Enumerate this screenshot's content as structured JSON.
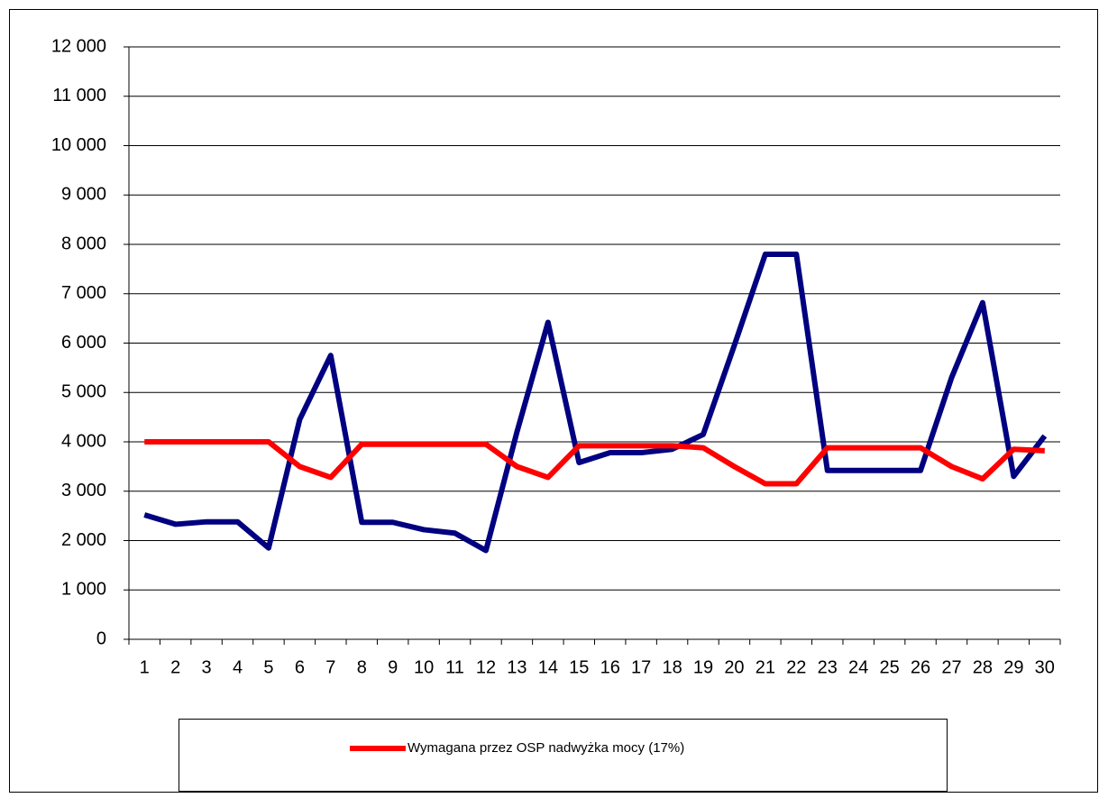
{
  "chart_data": {
    "type": "line",
    "categories": [
      "1",
      "2",
      "3",
      "4",
      "5",
      "6",
      "7",
      "8",
      "9",
      "10",
      "11",
      "12",
      "13",
      "14",
      "15",
      "16",
      "17",
      "18",
      "19",
      "20",
      "21",
      "22",
      "23",
      "24",
      "25",
      "26",
      "27",
      "28",
      "29",
      "30"
    ],
    "series": [
      {
        "name": "Wymagana przez OSP nadwyżka mocy (17%)",
        "color": "#ff0000",
        "values": [
          4000,
          4000,
          4000,
          4000,
          4000,
          3500,
          3280,
          3950,
          3950,
          3950,
          3950,
          3950,
          3500,
          3280,
          3920,
          3920,
          3920,
          3920,
          3880,
          3500,
          3150,
          3150,
          3880,
          3880,
          3880,
          3880,
          3500,
          3250,
          3850,
          3820
        ]
      },
      {
        "color": "#000080",
        "values": [
          2520,
          2330,
          2380,
          2380,
          1850,
          4450,
          5750,
          2370,
          2370,
          2220,
          2150,
          1800,
          4200,
          6420,
          3580,
          3780,
          3780,
          3850,
          4150,
          5950,
          7800,
          7800,
          3420,
          3420,
          3420,
          3420,
          5300,
          6820,
          3300,
          4120
        ]
      }
    ],
    "ylim": [
      0,
      12000
    ],
    "yticks": [
      0,
      {
        "value": 1000,
        "label": "1 000"
      },
      {
        "value": 2000,
        "label": "2 000"
      },
      {
        "value": 3000,
        "label": "3 000"
      },
      {
        "value": 4000,
        "label": "4 000"
      },
      {
        "value": 5000,
        "label": "5 000"
      },
      {
        "value": 6000,
        "label": "6 000"
      },
      {
        "value": 7000,
        "label": "7 000"
      },
      {
        "value": 8000,
        "label": "8 000"
      },
      {
        "value": 9000,
        "label": "9 000"
      },
      {
        "value": 10000,
        "label": "10 000"
      },
      {
        "value": 11000,
        "label": "11 000"
      },
      {
        "value": 12000,
        "label": "12 000"
      }
    ],
    "grid": true
  }
}
